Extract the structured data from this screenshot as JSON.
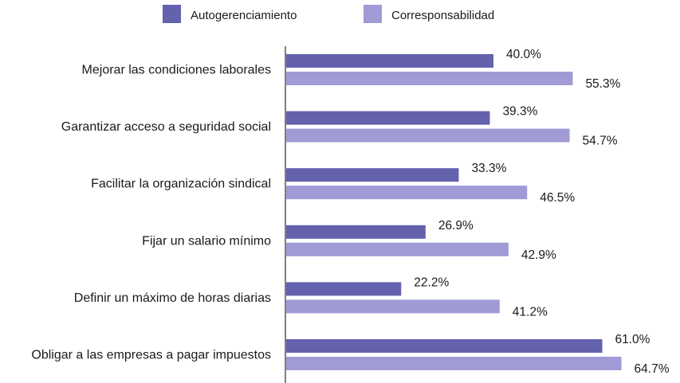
{
  "chart_data": {
    "type": "bar",
    "orientation": "horizontal",
    "title": "",
    "xlabel": "",
    "ylabel": "",
    "xlim": [
      0,
      70
    ],
    "grid": false,
    "legend_position": "top",
    "categories": [
      "Mejorar las condiciones laborales",
      "Garantizar acceso a seguridad social",
      "Facilitar la organización sindical",
      "Fijar un salario mínimo",
      "Definir un máximo de horas diarias",
      "Obligar a las empresas a pagar impuestos"
    ],
    "series": [
      {
        "name": "Autogerenciamiento",
        "color": "#6462ad",
        "values": [
          40.0,
          39.3,
          33.3,
          26.9,
          22.2,
          61.0
        ],
        "labels": [
          "40.0%",
          "39.3%",
          "33.3%",
          "26.9%",
          "22.2%",
          "61.0%"
        ]
      },
      {
        "name": "Corresponsabilidad",
        "color": "#a09bd5",
        "values": [
          55.3,
          54.7,
          46.5,
          42.9,
          41.2,
          64.7
        ],
        "labels": [
          "55.3%",
          "54.7%",
          "46.5%",
          "42.9%",
          "41.2%",
          "64.7%"
        ]
      }
    ]
  },
  "colors": {
    "axis": "#555555"
  }
}
